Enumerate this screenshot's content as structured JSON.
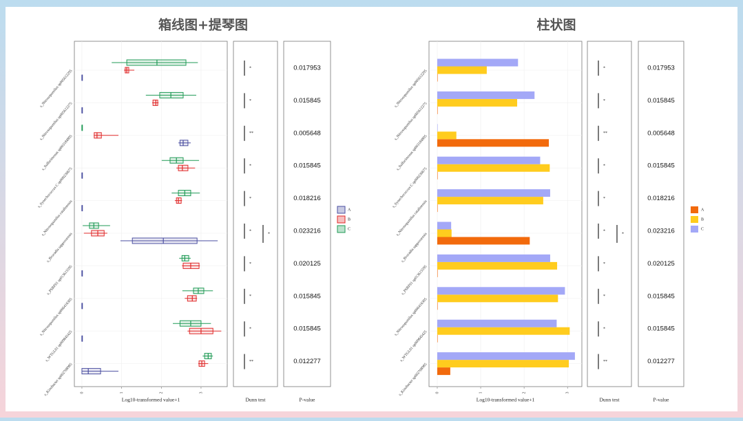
{
  "chart_data": [
    {
      "type": "boxplot",
      "title": "箱线图+提琴图",
      "categories": [
        "s_Nitrosopumilus sp005612295",
        "s_Nitrosopumilus sp005612275",
        "s_Sulfurimonas sp003184895",
        "s_Synechococcus C sp000230675",
        "s_Nitrosopumilus catalinensis",
        "s_Brocadia sapporoensis",
        "s_PSRF01 sp013615595",
        "s_Nitrosopumilus sp006416305",
        "s_WTGL01 sp009845425",
        "s_Kinobacter sp002708985"
      ],
      "series": [
        {
          "name": "A",
          "color": "#4a4ea0",
          "values": [
            [
              0,
              0,
              0,
              0,
              0
            ],
            [
              0,
              0,
              0,
              0,
              0
            ],
            [
              2.43,
              2.47,
              2.55,
              2.67,
              2.74
            ],
            [
              0,
              0,
              0,
              0,
              0
            ],
            [
              0,
              0,
              0,
              0,
              0
            ],
            [
              0.97,
              1.27,
              2.05,
              2.9,
              3.42
            ],
            [
              0,
              0,
              0,
              0,
              0
            ],
            [
              0,
              0,
              0,
              0,
              0
            ],
            [
              0,
              0,
              0,
              0,
              0
            ],
            [
              0,
              0,
              0.16,
              0.47,
              0.92
            ]
          ]
        },
        {
          "name": "B",
          "color": "#e02828",
          "values": [
            [
              1.06,
              1.09,
              1.13,
              1.18,
              1.32
            ],
            [
              1.77,
              1.79,
              1.86,
              1.91,
              1.93
            ],
            [
              0.3,
              0.31,
              0.38,
              0.49,
              0.92
            ],
            [
              2.38,
              2.43,
              2.53,
              2.67,
              2.85
            ],
            [
              2.34,
              2.38,
              2.43,
              2.5,
              2.52
            ],
            [
              0.05,
              0.24,
              0.4,
              0.56,
              0.64
            ],
            [
              2.52,
              2.55,
              2.74,
              2.95,
              2.97
            ],
            [
              2.59,
              2.66,
              2.78,
              2.88,
              2.9
            ],
            [
              2.66,
              2.71,
              3.0,
              3.3,
              3.51
            ],
            [
              2.93,
              2.95,
              3.02,
              3.09,
              3.18
            ]
          ]
        },
        {
          "name": "C",
          "color": "#1f9a55",
          "values": [
            [
              0.75,
              1.13,
              1.89,
              2.62,
              2.92
            ],
            [
              1.61,
              1.96,
              2.24,
              2.55,
              2.88
            ],
            [
              0,
              0,
              0,
              0,
              0
            ],
            [
              2.01,
              2.22,
              2.38,
              2.55,
              2.95
            ],
            [
              2.26,
              2.43,
              2.59,
              2.74,
              2.97
            ],
            [
              0.02,
              0.19,
              0.3,
              0.42,
              0.71
            ],
            [
              2.45,
              2.52,
              2.59,
              2.69,
              2.74
            ],
            [
              2.53,
              2.81,
              2.93,
              3.07,
              3.3
            ],
            [
              2.29,
              2.47,
              2.74,
              3.0,
              3.25
            ],
            [
              3.04,
              3.09,
              3.18,
              3.26,
              3.3
            ]
          ]
        }
      ],
      "xlabel": "Log10-transformed value+1",
      "xlim": [
        -0.19,
        3.66
      ],
      "xticks": [
        0,
        1,
        2,
        3
      ],
      "dunn_title": "Dunn test",
      "dunn": [
        [
          "*"
        ],
        [
          "*"
        ],
        [
          "**"
        ],
        [
          "*"
        ],
        [
          "*"
        ],
        [
          "*",
          "*"
        ],
        [
          "*"
        ],
        [
          "*"
        ],
        [
          "*"
        ],
        [
          "**"
        ]
      ],
      "pvalue_title": "P-value",
      "pvalues": [
        "0.017953",
        "0.015845",
        "0.005648",
        "0.015845",
        "0.018216",
        "0.023216",
        "0.020125",
        "0.015845",
        "0.015845",
        "0.012277"
      ]
    },
    {
      "type": "bar",
      "title": "柱状图",
      "categories": [
        "s_Nitrosopumilus sp005612295",
        "s_Nitrosopumilus sp005612275",
        "s_Sulfurimonas sp003184895",
        "s_Synechococcus C sp000230675",
        "s_Nitrosopumilus catalinensis",
        "s_Brocadia sapporoensis",
        "s_PSRF01 sp013615595",
        "s_Nitrosopumilus sp006416305",
        "s_WTGL01 sp009845425",
        "s_Kinobacter sp002708985"
      ],
      "series": [
        {
          "name": "A",
          "color": "#f26a0c",
          "values": [
            0,
            0,
            2.57,
            0,
            0,
            2.13,
            0,
            0,
            0,
            0.3
          ]
        },
        {
          "name": "B",
          "color": "#ffcc1e",
          "values": [
            1.14,
            1.84,
            0.44,
            2.59,
            2.44,
            0.33,
            2.76,
            2.78,
            3.05,
            3.03
          ]
        },
        {
          "name": "C",
          "color": "#a3a8f7",
          "values": [
            1.86,
            2.24,
            0,
            2.37,
            2.6,
            0.32,
            2.6,
            2.94,
            2.75,
            3.17
          ]
        }
      ],
      "xlabel": "Log10-transformed value+1",
      "xlim": [
        -0.19,
        3.33
      ],
      "xticks": [
        0,
        1,
        2,
        3
      ],
      "dunn_title": "Dunn test",
      "dunn": [
        [
          "*"
        ],
        [
          "*"
        ],
        [
          "**"
        ],
        [
          "*"
        ],
        [
          "*"
        ],
        [
          "*",
          "*"
        ],
        [
          "*"
        ],
        [
          "*"
        ],
        [
          "*"
        ],
        [
          "**"
        ]
      ],
      "pvalue_title": "P-value",
      "pvalues": [
        "0.017953",
        "0.015845",
        "0.005648",
        "0.015845",
        "0.018216",
        "0.023216",
        "0.020125",
        "0.015845",
        "0.015845",
        "0.012277"
      ]
    }
  ]
}
